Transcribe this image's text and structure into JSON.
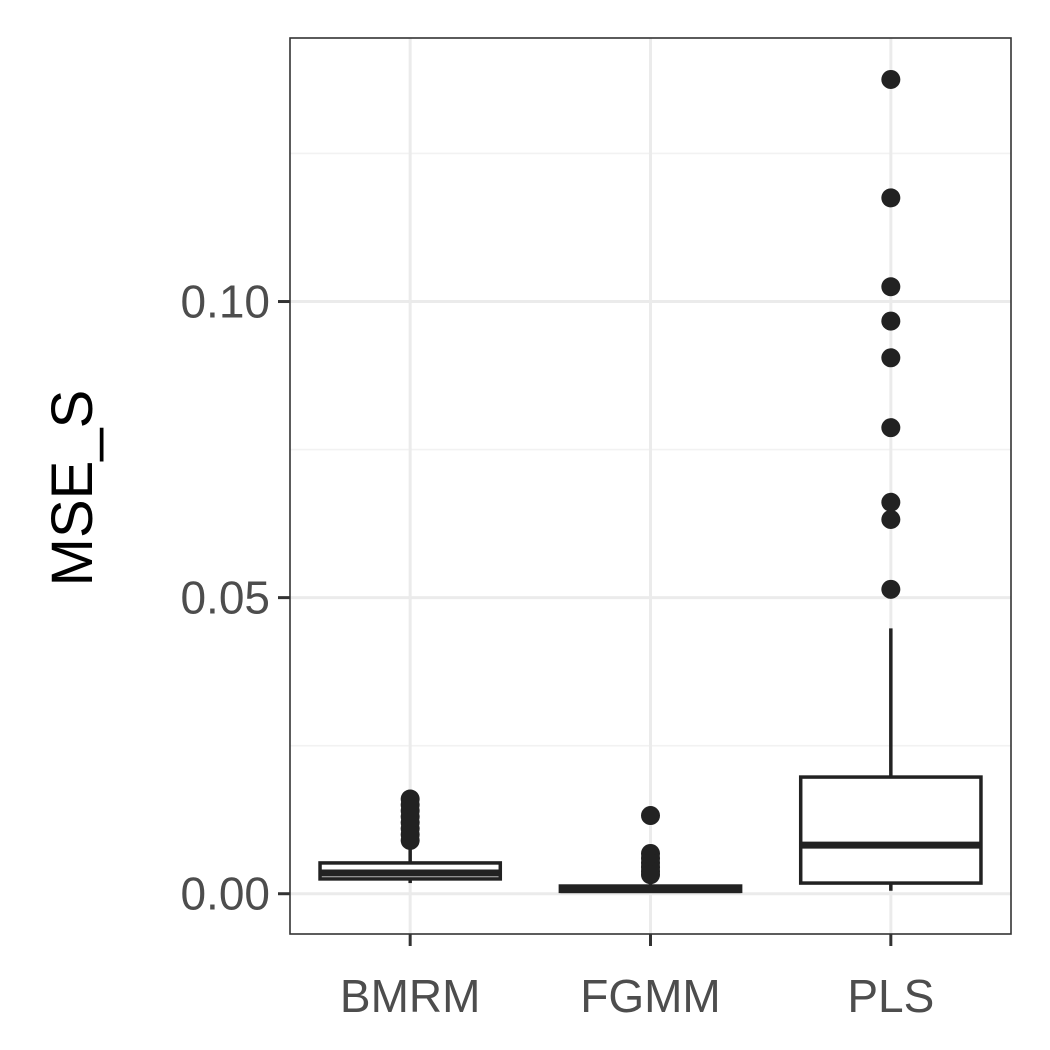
{
  "chart_data": {
    "type": "boxplot",
    "title": "",
    "xlabel": "",
    "ylabel": "MSE_S",
    "ylim": [
      -0.0068,
      0.1445
    ],
    "yticks": [
      0.0,
      0.05,
      0.1
    ],
    "ytick_labels": [
      "0.00",
      "0.05",
      "0.10"
    ],
    "categories": [
      "BMRM",
      "FGMM",
      "PLS"
    ],
    "grid": true,
    "legend": "none",
    "colors": {
      "box_stroke": "#222222",
      "panel_border": "#333333",
      "grid_major": "#ebebeb",
      "grid_minor": "#f2f2f2",
      "tick_label": "#4d4d4d"
    },
    "boxes": [
      {
        "category": "BMRM",
        "whisker_low": 0.0018,
        "q1": 0.0025,
        "median": 0.0035,
        "q3": 0.0052,
        "whisker_high": 0.008,
        "outliers": [
          0.016,
          0.015,
          0.014,
          0.013,
          0.012,
          0.011,
          0.01,
          0.009
        ]
      },
      {
        "category": "FGMM",
        "whisker_low": 0.0002,
        "q1": 0.0004,
        "median": 0.0007,
        "q3": 0.0013,
        "whisker_high": 0.0025,
        "outliers": [
          0.0132,
          0.0068,
          0.006,
          0.0052,
          0.0045,
          0.0038,
          0.0032
        ]
      },
      {
        "category": "PLS",
        "whisker_low": 0.0005,
        "q1": 0.0018,
        "median": 0.0082,
        "q3": 0.0197,
        "whisker_high": 0.0448,
        "outliers": [
          0.1375,
          0.1175,
          0.1025,
          0.0967,
          0.0905,
          0.0787,
          0.0661,
          0.0632,
          0.0514
        ]
      }
    ]
  }
}
